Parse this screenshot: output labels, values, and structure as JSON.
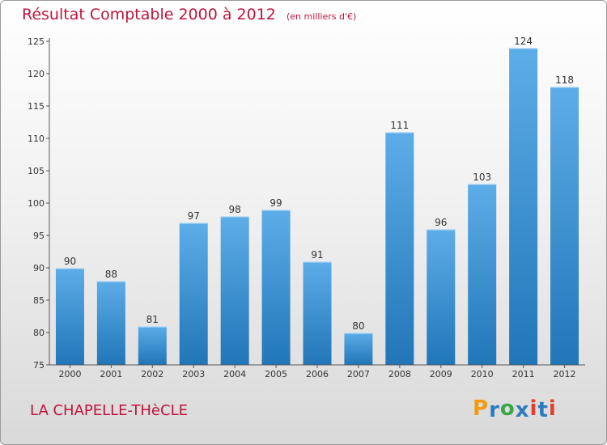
{
  "header": {
    "title": "Résultat Comptable 2000 à 2012",
    "unit": "(en milliers d'€)"
  },
  "footer": {
    "commune": "LA CHAPELLE-THèCLE",
    "logo_letters": [
      "P",
      "r",
      "o",
      "x",
      "i",
      "t",
      "i"
    ],
    "logo_colors": [
      "#f39c12",
      "#2b7bbf",
      "#3aa64a",
      "#2b7bbf",
      "#e63e2c",
      "#2b7bbf",
      "#e63e2c"
    ]
  },
  "colors": {
    "bar_light": "#5dade8",
    "bar_dark": "#2176b8",
    "axis": "#555555",
    "title": "#c0143c"
  },
  "chart_data": {
    "type": "bar",
    "title": "Résultat Comptable 2000 à 2012",
    "xlabel": "",
    "ylabel": "",
    "categories": [
      "2000",
      "2001",
      "2002",
      "2003",
      "2004",
      "2005",
      "2006",
      "2007",
      "2008",
      "2009",
      "2010",
      "2011",
      "2012"
    ],
    "values": [
      90,
      88,
      81,
      97,
      98,
      99,
      91,
      80,
      111,
      96,
      103,
      124,
      118
    ],
    "ylim": [
      75,
      125
    ],
    "yticks": [
      75,
      80,
      85,
      90,
      95,
      100,
      105,
      110,
      115,
      120,
      125
    ],
    "grid": false,
    "legend": "none"
  }
}
